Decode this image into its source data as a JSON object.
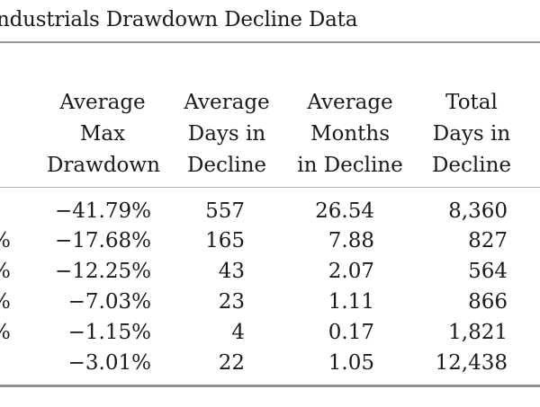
{
  "title": "ndustrials Drawdown Decline Data",
  "headers": {
    "avg_max_drawdown": [
      "Average",
      "Max",
      "Drawdown"
    ],
    "avg_days_decline": [
      "Average",
      "Days in",
      "Decline"
    ],
    "avg_months_decline": [
      "Average",
      "Months",
      "in Decline"
    ],
    "total_days_decline": [
      "Total",
      "Days in",
      "Decline"
    ]
  },
  "rows": [
    {
      "cut": "",
      "drawdown": "−41.79%",
      "days": "557",
      "months": "26.54",
      "total": "8,360"
    },
    {
      "cut": "%",
      "drawdown": "−17.68%",
      "days": "165",
      "months": "7.88",
      "total": "827"
    },
    {
      "cut": "%",
      "drawdown": "−12.25%",
      "days": "43",
      "months": "2.07",
      "total": "564"
    },
    {
      "cut": "%",
      "drawdown": "−7.03%",
      "days": "23",
      "months": "1.11",
      "total": "866"
    },
    {
      "cut": "%",
      "drawdown": "−1.15%",
      "days": "4",
      "months": "0.17",
      "total": "1,821"
    },
    {
      "cut": "",
      "drawdown": "−3.01%",
      "days": "22",
      "months": "1.05",
      "total": "12,438"
    }
  ]
}
